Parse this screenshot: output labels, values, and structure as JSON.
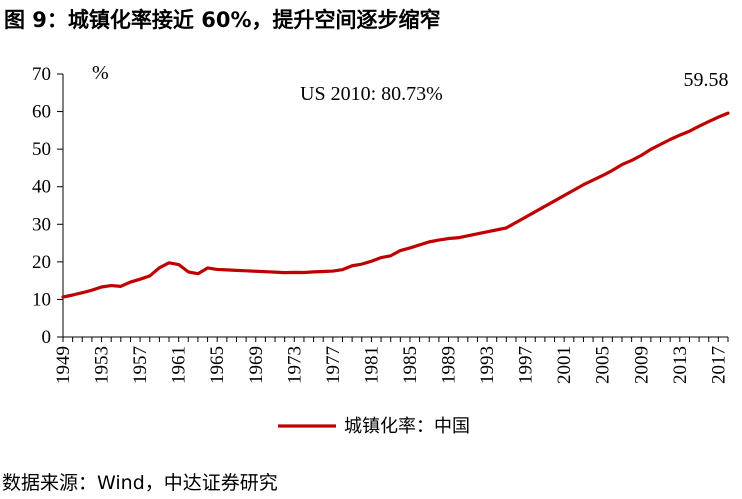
{
  "figure_title": "图 9：城镇化率接近 60%，提升空间逐步缩窄",
  "source_note": "数据来源：Wind，中达证券研究",
  "colors": {
    "series": "#c00000",
    "axis": "#000000"
  },
  "chart_data": {
    "type": "line",
    "title": "",
    "xlabel": "",
    "ylabel": "%",
    "ylim": [
      0,
      70
    ],
    "yticks": [
      0,
      10,
      20,
      30,
      40,
      50,
      60,
      70
    ],
    "xlim": [
      1949,
      2018
    ],
    "xticks": [
      1949,
      1953,
      1957,
      1961,
      1965,
      1969,
      1973,
      1977,
      1981,
      1985,
      1989,
      1993,
      1997,
      2001,
      2005,
      2009,
      2013,
      2017
    ],
    "grid": false,
    "legend_position": "bottom",
    "annotations": [
      {
        "text": "US 2010: 80.73%"
      },
      {
        "text": "59.58"
      }
    ],
    "series": [
      {
        "name": "城镇化率：中国",
        "x": [
          1949,
          1950,
          1951,
          1952,
          1953,
          1954,
          1955,
          1956,
          1957,
          1958,
          1959,
          1960,
          1961,
          1962,
          1963,
          1964,
          1965,
          1966,
          1967,
          1968,
          1969,
          1970,
          1971,
          1972,
          1973,
          1974,
          1975,
          1976,
          1977,
          1978,
          1979,
          1980,
          1981,
          1982,
          1983,
          1984,
          1985,
          1986,
          1987,
          1988,
          1989,
          1990,
          1991,
          1992,
          1993,
          1994,
          1995,
          1996,
          1997,
          1998,
          1999,
          2000,
          2001,
          2002,
          2003,
          2004,
          2005,
          2006,
          2007,
          2008,
          2009,
          2010,
          2011,
          2012,
          2013,
          2014,
          2015,
          2016,
          2017,
          2018
        ],
        "y": [
          10.64,
          11.18,
          11.78,
          12.46,
          13.31,
          13.69,
          13.48,
          14.62,
          15.39,
          16.25,
          18.41,
          19.75,
          19.29,
          17.33,
          16.84,
          18.37,
          17.98,
          17.86,
          17.74,
          17.62,
          17.5,
          17.38,
          17.26,
          17.13,
          17.2,
          17.16,
          17.34,
          17.44,
          17.55,
          17.92,
          18.96,
          19.39,
          20.16,
          21.13,
          21.62,
          23.01,
          23.71,
          24.52,
          25.32,
          25.81,
          26.21,
          26.41,
          26.94,
          27.46,
          27.99,
          28.51,
          29.04,
          30.48,
          31.91,
          33.35,
          34.78,
          36.22,
          37.66,
          39.09,
          40.53,
          41.76,
          42.99,
          44.34,
          45.89,
          46.99,
          48.34,
          49.95,
          51.27,
          52.57,
          53.73,
          54.77,
          56.1,
          57.35,
          58.52,
          59.58
        ]
      }
    ]
  }
}
